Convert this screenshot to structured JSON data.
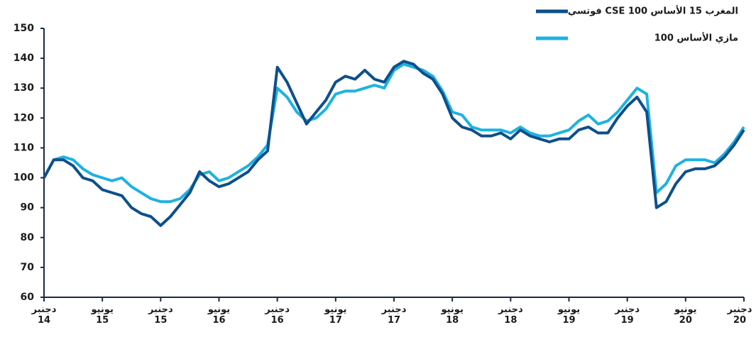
{
  "chart_data": {
    "type": "line",
    "categories": [
      "دجنبر 14",
      null,
      null,
      null,
      null,
      null,
      "يونيو 15",
      null,
      null,
      null,
      null,
      null,
      "دجنبر 15",
      null,
      null,
      null,
      null,
      null,
      "يونيو 16",
      null,
      null,
      null,
      null,
      null,
      "دجنبر 16",
      null,
      null,
      null,
      null,
      null,
      "يونيو 17",
      null,
      null,
      null,
      null,
      null,
      "دجنبر 17",
      null,
      null,
      null,
      null,
      null,
      "يونيو 18",
      null,
      null,
      null,
      null,
      null,
      "دجنبر 18",
      null,
      null,
      null,
      null,
      null,
      "يونيو 19",
      null,
      null,
      null,
      null,
      null,
      "دجنبر 19",
      null,
      null,
      null,
      null,
      null,
      "يونيو 20",
      null,
      null,
      null,
      null,
      null,
      "دجنبر 20"
    ],
    "series": [
      {
        "name": "فوتسي CSE المغرب 15 الأساس 100",
        "color": "#0d4f8b",
        "values": [
          100,
          106,
          106,
          104,
          100,
          99,
          96,
          95,
          94,
          90,
          88,
          87,
          84,
          87,
          91,
          95,
          102,
          99,
          97,
          98,
          100,
          102,
          106,
          109,
          137,
          132,
          125,
          118,
          122,
          126,
          132,
          134,
          133,
          136,
          133,
          132,
          137,
          139,
          138,
          135,
          133,
          128,
          120,
          117,
          116,
          114,
          114,
          115,
          113,
          116,
          114,
          113,
          112,
          113,
          113,
          116,
          117,
          115,
          115,
          120,
          124,
          127,
          122,
          90,
          92,
          98,
          102,
          103,
          103,
          104,
          107,
          111,
          116
        ]
      },
      {
        "name": "مازي الأساس 100",
        "color": "#1eb2e0",
        "values": [
          100,
          106,
          107,
          106,
          103,
          101,
          100,
          99,
          100,
          97,
          95,
          93,
          92,
          92,
          93,
          96,
          101,
          102,
          99,
          100,
          102,
          104,
          107,
          111,
          130,
          127,
          122,
          119,
          120,
          123,
          128,
          129,
          129,
          130,
          131,
          130,
          136,
          138,
          137,
          136,
          134,
          129,
          122,
          121,
          117,
          116,
          116,
          116,
          115,
          117,
          115,
          114,
          114,
          115,
          116,
          119,
          121,
          118,
          119,
          122,
          126,
          130,
          128,
          95,
          98,
          104,
          106,
          106,
          106,
          105,
          108,
          112,
          117
        ]
      }
    ],
    "ylim": [
      60,
      150
    ],
    "yticks": [
      60,
      70,
      80,
      90,
      100,
      110,
      120,
      130,
      140,
      150
    ]
  }
}
